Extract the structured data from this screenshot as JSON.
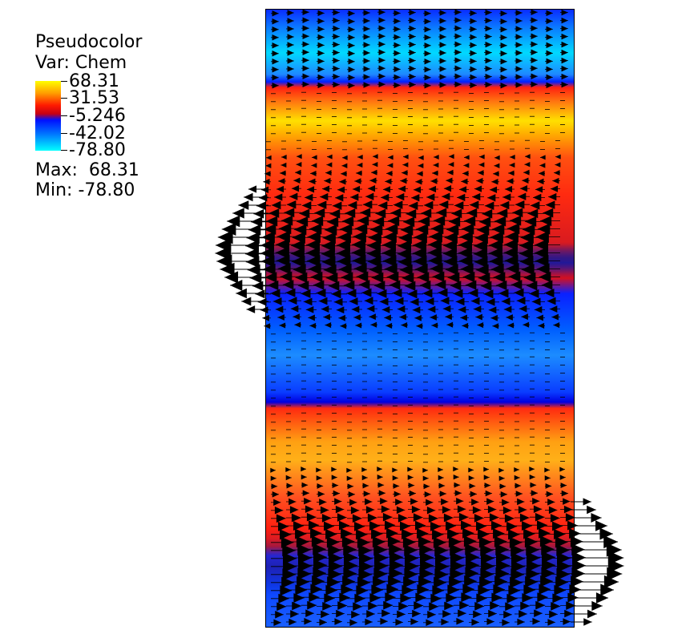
{
  "legend": {
    "title": "Pseudocolor",
    "variable": "Var: Chem",
    "ticks": [
      "68.31",
      "31.53",
      "-5.246",
      "-42.02",
      "-78.80"
    ],
    "max_label": "Max:",
    "max_value": "68.31",
    "min_label": "Min:",
    "min_value": "-78.80"
  },
  "colormap": [
    "#00ffff",
    "#0070ff",
    "#0010ff",
    "#c80012",
    "#ff1a00",
    "#ff9a00",
    "#ffff00"
  ],
  "vector_color": "#000000"
}
